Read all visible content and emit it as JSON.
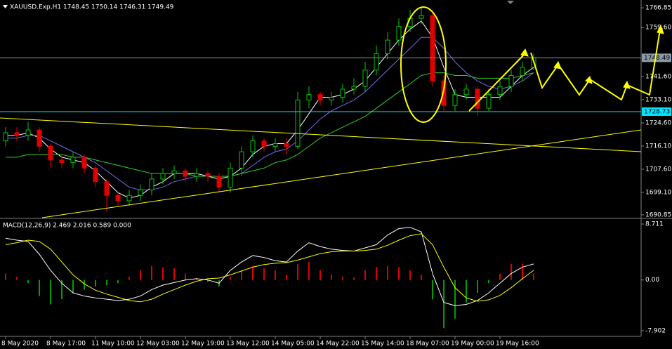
{
  "chart_data": [
    {
      "type": "candlestick",
      "title": "XAUUSD.Exp,H1  1748.45 1750.14 1746.31 1749.49",
      "open": [
        1718,
        1721,
        1720,
        1722,
        1716,
        1711,
        1710,
        1712,
        1708,
        1703,
        1698,
        1696,
        1698,
        1700,
        1704,
        1706,
        1707,
        1705,
        1706,
        1705,
        1701,
        1708,
        1714,
        1718,
        1716,
        1717,
        1716,
        1733,
        1735,
        1733,
        1734,
        1737,
        1738,
        1744,
        1750,
        1755,
        1760,
        1763,
        1764,
        1740,
        1731,
        1735,
        1737,
        1730,
        1735,
        1738,
        1742,
        1745
      ],
      "high": [
        1723,
        1723,
        1725,
        1723,
        1717,
        1713,
        1714,
        1713,
        1709,
        1704,
        1699,
        1700,
        1702,
        1706,
        1708,
        1709,
        1708,
        1708,
        1707,
        1706,
        1710,
        1716,
        1720,
        1719,
        1719,
        1719,
        1736,
        1738,
        1736,
        1736,
        1739,
        1741,
        1747,
        1753,
        1758,
        1763,
        1766,
        1767,
        1765,
        1742,
        1737,
        1739,
        1738,
        1737,
        1740,
        1744,
        1747,
        1750
      ],
      "low": [
        1716,
        1718,
        1718,
        1714,
        1708,
        1708,
        1708,
        1706,
        1701,
        1692,
        1694,
        1694,
        1696,
        1698,
        1702,
        1704,
        1703,
        1703,
        1703,
        1699,
        1699,
        1705,
        1712,
        1714,
        1714,
        1713,
        1715,
        1730,
        1731,
        1731,
        1732,
        1735,
        1736,
        1742,
        1748,
        1753,
        1758,
        1761,
        1738,
        1729,
        1729,
        1733,
        1727,
        1729,
        1733,
        1736,
        1740,
        1744
      ],
      "close": [
        1721,
        1720,
        1722,
        1716,
        1711,
        1710,
        1712,
        1708,
        1703,
        1698,
        1696,
        1698,
        1700,
        1704,
        1706,
        1707,
        1705,
        1706,
        1705,
        1701,
        1708,
        1714,
        1718,
        1716,
        1717,
        1716,
        1733,
        1735,
        1733,
        1734,
        1737,
        1738,
        1744,
        1750,
        1755,
        1760,
        1763,
        1764,
        1740,
        1731,
        1735,
        1737,
        1730,
        1735,
        1738,
        1742,
        1745,
        1748.5
      ],
      "up_color": "#00c800",
      "down_color": "#e00000",
      "lines": [
        {
          "color": "#ffffff",
          "values": [
            1720,
            1720,
            1721,
            1719,
            1715,
            1712,
            1711,
            1710,
            1707,
            1703,
            1699,
            1697,
            1698,
            1701,
            1703,
            1706,
            1706,
            1706,
            1705,
            1704,
            1705,
            1708,
            1713,
            1716,
            1717,
            1717,
            1722,
            1728,
            1734,
            1734,
            1735,
            1737,
            1740,
            1745,
            1750,
            1755,
            1759,
            1762,
            1756,
            1745,
            1735,
            1734,
            1734,
            1734,
            1734,
            1738,
            1742,
            1745
          ]
        },
        {
          "color": "#7b68ee",
          "values": [
            1719,
            1719,
            1720,
            1720,
            1718,
            1716,
            1714,
            1712,
            1710,
            1707,
            1704,
            1701,
            1700,
            1700,
            1701,
            1703,
            1704,
            1705,
            1705,
            1705,
            1705,
            1706,
            1709,
            1712,
            1714,
            1715,
            1718,
            1722,
            1726,
            1729,
            1731,
            1733,
            1736,
            1740,
            1744,
            1748,
            1752,
            1756,
            1756,
            1752,
            1747,
            1743,
            1740,
            1738,
            1737,
            1738,
            1740,
            1743
          ]
        },
        {
          "color": "#32cd32",
          "values": [
            1712,
            1712,
            1713,
            1713,
            1713,
            1713,
            1712,
            1712,
            1711,
            1710,
            1709,
            1708,
            1707,
            1706,
            1706,
            1706,
            1706,
            1705,
            1705,
            1705,
            1705,
            1706,
            1707,
            1708,
            1710,
            1711,
            1713,
            1716,
            1719,
            1721,
            1723,
            1725,
            1727,
            1730,
            1733,
            1736,
            1739,
            1742,
            1743,
            1743,
            1742,
            1742,
            1741,
            1741,
            1741,
            1741,
            1742,
            1743
          ]
        }
      ],
      "price_lines": [
        {
          "value": 1748.49,
          "color": "#8c9aa8"
        },
        {
          "value": 1728.73,
          "color": "#00e5ff"
        }
      ],
      "ylim": [
        1689.8,
        1769.2
      ],
      "yticks": [
        1766.85,
        {
          "value": 1759.6,
          "label": "1759.60"
        },
        {
          "value": 1741.6,
          "label": "1741.60"
        },
        {
          "value": 1733.1,
          "label": "1733.10"
        },
        {
          "value": 1724.6,
          "label": "1724.60"
        },
        {
          "value": 1716.1,
          "label": "1716.10"
        },
        {
          "value": 1707.6,
          "label": "1707.60"
        },
        {
          "value": 1699.1,
          "label": "1699.10"
        },
        1690.85
      ]
    },
    {
      "type": "macd",
      "title": "MACD(12,26,9) 2.469 2.016 0.589 0.000",
      "categories": [
        "8 May 2020",
        null,
        null,
        null,
        "8 May 17:00",
        null,
        null,
        null,
        "11 May 10:00",
        null,
        null,
        null,
        "12 May 03:00",
        null,
        null,
        null,
        "12 May 19:00",
        null,
        null,
        null,
        "13 May 12:00",
        null,
        null,
        null,
        "14 May 05:00",
        null,
        null,
        null,
        "14 May 22:00",
        null,
        null,
        null,
        "15 May 14:00",
        null,
        null,
        null,
        "18 May 07:00",
        null,
        null,
        null,
        "19 May 00:00",
        null,
        null,
        null,
        "19 May 16:00",
        null,
        null,
        null
      ],
      "histogram": {
        "up_color": "#e00000",
        "down_color": "#00a000",
        "values": [
          1.0,
          0.5,
          -0.5,
          -2.5,
          -3.8,
          -3.0,
          -2.0,
          -1.5,
          -1.0,
          -0.8,
          -0.5,
          0.5,
          1.5,
          2.2,
          2.0,
          1.8,
          1.0,
          0.3,
          -0.3,
          -1.0,
          0.5,
          1.5,
          2.2,
          1.8,
          1.5,
          0.8,
          2.5,
          2.8,
          1.5,
          0.8,
          0.5,
          0.4,
          1.5,
          2.0,
          2.2,
          2.0,
          1.5,
          0.8,
          -3.0,
          -7.5,
          -6.0,
          -3.5,
          -2.0,
          -0.5,
          1.0,
          2.5,
          2.5,
          1.0
        ]
      },
      "macd": {
        "color": "#ffffff",
        "values": [
          6.5,
          6.2,
          6.0,
          4.0,
          1.5,
          -0.5,
          -2.0,
          -2.5,
          -2.8,
          -3.0,
          -3.2,
          -3.0,
          -2.5,
          -1.5,
          -0.8,
          -0.4,
          0,
          0.2,
          0,
          -0.5,
          1.5,
          2.8,
          3.8,
          3.5,
          3.0,
          2.8,
          4.5,
          5.8,
          5.2,
          4.8,
          4.6,
          4.5,
          5.0,
          5.5,
          7.0,
          8.0,
          8.2,
          7.5,
          1.0,
          -3.5,
          -4.0,
          -3.8,
          -3.2,
          -2.0,
          -0.5,
          1.0,
          2.0,
          2.5
        ]
      },
      "signal": {
        "color": "#ffff00",
        "values": [
          5.5,
          5.8,
          6.2,
          6.0,
          4.8,
          2.8,
          0.8,
          -0.6,
          -1.6,
          -2.2,
          -2.7,
          -3.2,
          -3.4,
          -3.0,
          -2.2,
          -1.5,
          -0.8,
          -0.2,
          0.2,
          0.3,
          0.8,
          1.4,
          2.0,
          2.4,
          2.6,
          2.7,
          3.1,
          3.6,
          4.1,
          4.4,
          4.5,
          4.5,
          4.6,
          4.8,
          5.4,
          6.2,
          6.9,
          7.2,
          5.5,
          2.0,
          -1.2,
          -2.8,
          -3.3,
          -3.1,
          -2.4,
          -1.2,
          0.2,
          1.5
        ]
      },
      "ylim": [
        -8.67,
        9.48
      ],
      "yticks": [
        8.711,
        {
          "value": 0,
          "label": "0.00"
        },
        -7.902
      ]
    }
  ]
}
